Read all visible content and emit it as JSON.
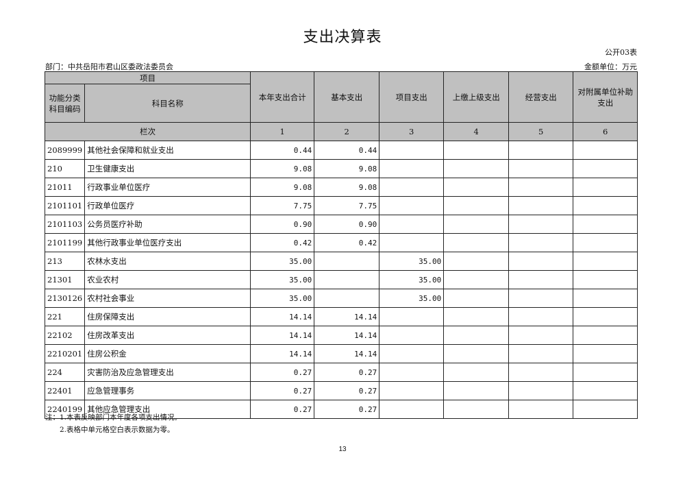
{
  "title": "支出决算表",
  "table_no": "公开03表",
  "department": "部门：中共岳阳市君山区委政法委员会",
  "unit": "金额单位：万元",
  "headers": {
    "item": "项目",
    "code": "功能分类科目编码",
    "name": "科目名称",
    "cols": [
      "本年支出合计",
      "基本支出",
      "项目支出",
      "上缴上级支出",
      "经营支出",
      "对附属单位补助支出"
    ],
    "row_label": "栏次",
    "col_nums": [
      "1",
      "2",
      "3",
      "4",
      "5",
      "6"
    ]
  },
  "rows": [
    {
      "code": "2089999",
      "name": "其他社会保障和就业支出",
      "v": [
        "0.44",
        "0.44",
        "",
        "",
        "",
        ""
      ]
    },
    {
      "code": "210",
      "name": "卫生健康支出",
      "v": [
        "9.08",
        "9.08",
        "",
        "",
        "",
        ""
      ]
    },
    {
      "code": "21011",
      "name": "行政事业单位医疗",
      "v": [
        "9.08",
        "9.08",
        "",
        "",
        "",
        ""
      ]
    },
    {
      "code": "2101101",
      "name": "行政单位医疗",
      "v": [
        "7.75",
        "7.75",
        "",
        "",
        "",
        ""
      ]
    },
    {
      "code": "2101103",
      "name": "公务员医疗补助",
      "v": [
        "0.90",
        "0.90",
        "",
        "",
        "",
        ""
      ]
    },
    {
      "code": "2101199",
      "name": "其他行政事业单位医疗支出",
      "v": [
        "0.42",
        "0.42",
        "",
        "",
        "",
        ""
      ]
    },
    {
      "code": "213",
      "name": "农林水支出",
      "v": [
        "35.00",
        "",
        "35.00",
        "",
        "",
        ""
      ]
    },
    {
      "code": "21301",
      "name": "农业农村",
      "v": [
        "35.00",
        "",
        "35.00",
        "",
        "",
        ""
      ]
    },
    {
      "code": "2130126",
      "name": "农村社会事业",
      "v": [
        "35.00",
        "",
        "35.00",
        "",
        "",
        ""
      ]
    },
    {
      "code": "221",
      "name": "住房保障支出",
      "v": [
        "14.14",
        "14.14",
        "",
        "",
        "",
        ""
      ]
    },
    {
      "code": "22102",
      "name": "住房改革支出",
      "v": [
        "14.14",
        "14.14",
        "",
        "",
        "",
        ""
      ]
    },
    {
      "code": "2210201",
      "name": "住房公积金",
      "v": [
        "14.14",
        "14.14",
        "",
        "",
        "",
        ""
      ]
    },
    {
      "code": "224",
      "name": "灾害防治及应急管理支出",
      "v": [
        "0.27",
        "0.27",
        "",
        "",
        "",
        ""
      ]
    },
    {
      "code": "22401",
      "name": "应急管理事务",
      "v": [
        "0.27",
        "0.27",
        "",
        "",
        "",
        ""
      ]
    },
    {
      "code": "2240199",
      "name": "其他应急管理支出",
      "v": [
        "0.27",
        "0.27",
        "",
        "",
        "",
        ""
      ]
    }
  ],
  "notes": [
    "注：1.本表反映部门本年度各项支出情况。",
    "　　2.表格中单元格空白表示数据为零。"
  ],
  "page_number": "13"
}
